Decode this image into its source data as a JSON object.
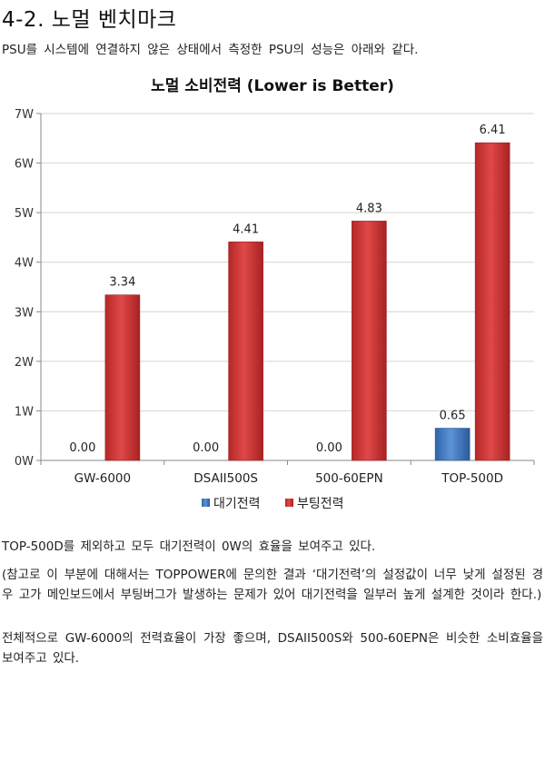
{
  "heading": "4-2. 노멀 벤치마크",
  "intro": "PSU를 시스템에 연결하지 않은 상태에서 측정한 PSU의 성능은 아래와 같다.",
  "chart_data": {
    "type": "bar",
    "title": "노멀 소비전력 (Lower is Better)",
    "xlabel": "",
    "ylabel": "",
    "categories": [
      "GW-6000",
      "DSAII500S",
      "500-60EPN",
      "TOP-500D"
    ],
    "series": [
      {
        "name": "대기전력",
        "values": [
          0.0,
          0.0,
          0.0,
          0.65
        ],
        "value_labels": [
          "0.00",
          "0.00",
          "0.00",
          "0.65"
        ],
        "color": "#4a7fc1"
      },
      {
        "name": "부팅전력",
        "values": [
          3.34,
          4.41,
          4.83,
          6.41
        ],
        "value_labels": [
          "3.34",
          "4.41",
          "4.83",
          "6.41"
        ],
        "color": "#d43a3a"
      }
    ],
    "ylim": [
      0,
      7
    ],
    "yticks": [
      "0W",
      "1W",
      "2W",
      "3W",
      "4W",
      "5W",
      "6W",
      "7W"
    ],
    "grid": true,
    "legend": "bottom"
  },
  "paragraphs": [
    "TOP-500D를 제외하고 모두 대기전력이 0W의 효율을 보여주고 있다.",
    "(참고로 이 부분에 대해서는 TOPPOWER에 문의한 결과 ‘대기전력’의 설정값이 너무 낮게 설정된 경우 고가 메인보드에서 부팅버그가 발생하는 문제가 있어 대기전력을 일부러 높게 설계한 것이라 한다.)",
    "전체적으로 GW-6000의 전력효율이 가장 좋으며, DSAII500S와 500-60EPN은 비슷한 소비효율을 보여주고 있다."
  ]
}
